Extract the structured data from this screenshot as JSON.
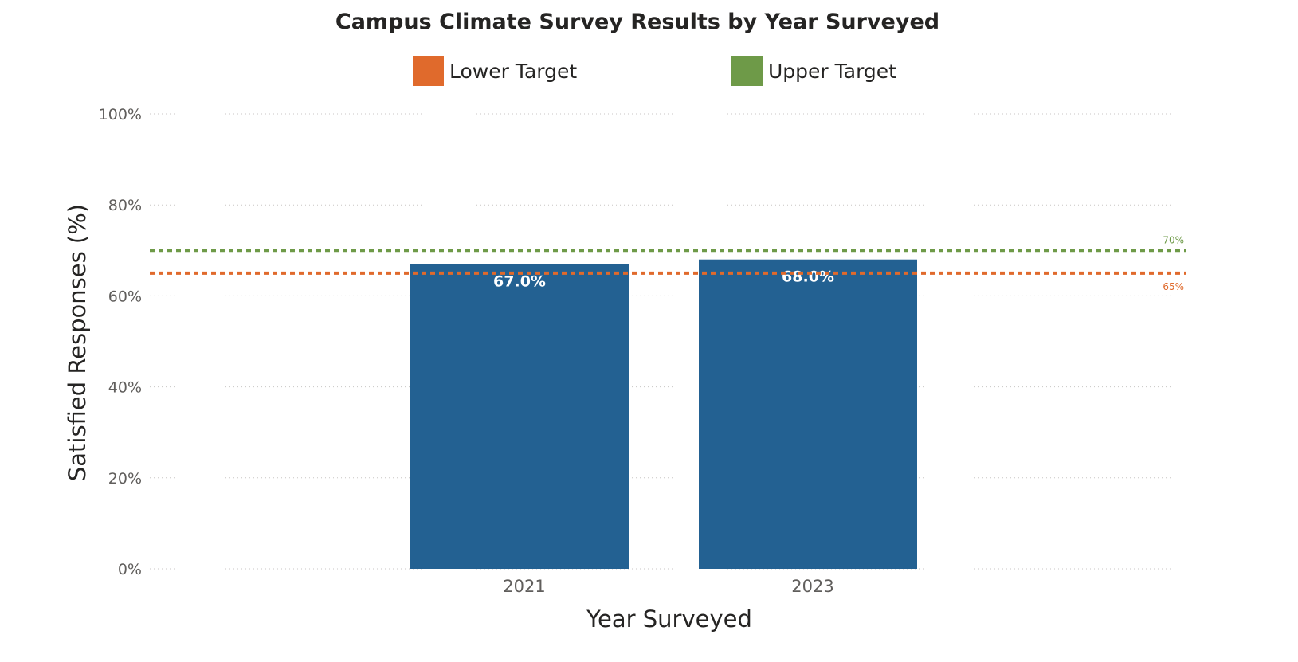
{
  "chart_data": {
    "type": "bar",
    "title": "Campus Climate Survey Results by Year Surveyed",
    "xlabel": "Year Surveyed",
    "ylabel": "Satisfied Responses (%)",
    "categories": [
      "2021",
      "2023"
    ],
    "values": [
      67.0,
      68.0
    ],
    "data_labels": [
      "67.0%",
      "68.0%"
    ],
    "ylim": [
      0,
      100
    ],
    "yticks": [
      0,
      20,
      40,
      60,
      80,
      100
    ],
    "ytick_labels": [
      "0%",
      "20%",
      "40%",
      "60%",
      "80%",
      "100%"
    ],
    "grid": true,
    "legend_placement": "top",
    "legend": [
      {
        "name": "Lower Target",
        "color": "#e06a2c"
      },
      {
        "name": "Upper Target",
        "color": "#6e9a48"
      }
    ],
    "reference_lines": [
      {
        "name": "Lower Target",
        "value": 65,
        "label": "65%",
        "color": "#e06a2c"
      },
      {
        "name": "Upper Target",
        "value": 70,
        "label": "70%",
        "color": "#6e9a48"
      }
    ],
    "bar_color": "#236192"
  }
}
